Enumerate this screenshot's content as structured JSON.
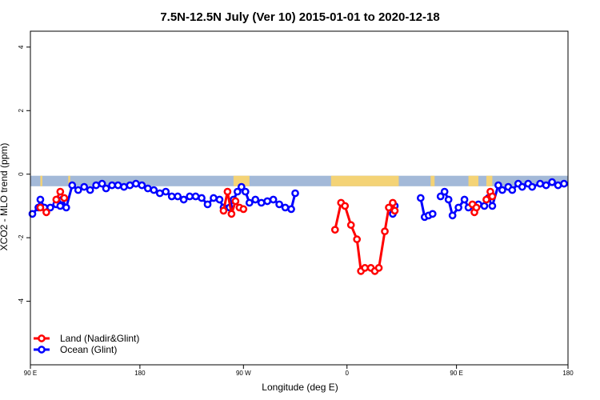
{
  "chart_data": {
    "type": "line",
    "title": "7.5N-12.5N July (Ver 10)   2015-01-01 to 2020-12-18",
    "xlabel": "Longitude (deg E)",
    "ylabel": "XCO2 - MLO trend (ppm)",
    "xlim": [
      -90,
      180
    ],
    "ylim": [
      -6,
      4.5
    ],
    "x_ticks": [
      {
        "value": -90,
        "label": "90 E"
      },
      {
        "value": -35,
        "label": "180"
      },
      {
        "value": 17,
        "label": "90 W"
      },
      {
        "value": 69,
        "label": "0"
      },
      {
        "value": 124,
        "label": "90 E"
      },
      {
        "value": 180,
        "label": "180"
      }
    ],
    "y_ticks": [
      -4,
      -2,
      0,
      2,
      4
    ],
    "legend_position": "bottom-left",
    "colors": {
      "land": "#ff0000",
      "ocean": "#0000ff",
      "land_mask": "#f4d376",
      "ocean_mask": "#a3b9d8"
    },
    "series": [
      {
        "name": "Land (Nadir&Glint)",
        "color": "#ff0000",
        "segments": [
          [
            [
              -85,
              -1.05
            ],
            [
              -82,
              -1.2
            ]
          ],
          [
            [
              -77,
              -0.8
            ],
            [
              -75,
              -0.55
            ],
            [
              -73,
              -0.75
            ]
          ],
          [
            [
              7,
              -1.15
            ],
            [
              9,
              -0.55
            ],
            [
              11,
              -1.25
            ],
            [
              13,
              -0.85
            ],
            [
              15,
              -1.05
            ],
            [
              17,
              -1.1
            ]
          ],
          [
            [
              63,
              -1.75
            ],
            [
              66,
              -0.9
            ],
            [
              68,
              -1.0
            ],
            [
              71,
              -1.6
            ],
            [
              74,
              -2.05
            ],
            [
              76,
              -3.05
            ],
            [
              78,
              -2.95
            ],
            [
              81,
              -2.95
            ],
            [
              83,
              -3.05
            ],
            [
              85,
              -2.95
            ],
            [
              88,
              -1.8
            ],
            [
              90,
              -1.05
            ],
            [
              92,
              -0.9
            ],
            [
              93,
              -1.15
            ]
          ],
          [
            [
              132,
              -0.95
            ],
            [
              133,
              -1.2
            ],
            [
              134,
              -1.05
            ]
          ],
          [
            [
              139,
              -0.8
            ],
            [
              141,
              -0.55
            ],
            [
              142,
              -0.7
            ]
          ]
        ]
      },
      {
        "name": "Ocean (Glint)",
        "color": "#0000ff",
        "segments": [
          [
            [
              -89,
              -1.25
            ],
            [
              -86,
              -1.05
            ],
            [
              -85,
              -0.8
            ],
            [
              -83,
              -1.05
            ],
            [
              -80,
              -1.05
            ],
            [
              -77,
              -0.95
            ],
            [
              -75,
              -1.0
            ],
            [
              -74,
              -0.8
            ],
            [
              -72,
              -1.05
            ],
            [
              -69,
              -0.35
            ],
            [
              -66,
              -0.5
            ],
            [
              -63,
              -0.4
            ],
            [
              -60,
              -0.5
            ],
            [
              -57,
              -0.35
            ],
            [
              -54,
              -0.3
            ],
            [
              -52,
              -0.45
            ],
            [
              -49,
              -0.35
            ],
            [
              -46,
              -0.35
            ],
            [
              -43,
              -0.4
            ],
            [
              -40,
              -0.35
            ],
            [
              -37,
              -0.3
            ],
            [
              -34,
              -0.35
            ],
            [
              -31,
              -0.45
            ],
            [
              -28,
              -0.5
            ],
            [
              -25,
              -0.6
            ],
            [
              -22,
              -0.55
            ],
            [
              -19,
              -0.7
            ],
            [
              -16,
              -0.7
            ],
            [
              -13,
              -0.8
            ],
            [
              -10,
              -0.7
            ],
            [
              -7,
              -0.7
            ],
            [
              -4,
              -0.75
            ],
            [
              -1,
              -0.95
            ],
            [
              2,
              -0.75
            ],
            [
              5,
              -0.8
            ],
            [
              7,
              -1.05
            ],
            [
              10,
              -1.05
            ],
            [
              12,
              -0.8
            ],
            [
              14,
              -0.55
            ],
            [
              16,
              -0.4
            ],
            [
              18,
              -0.55
            ],
            [
              20,
              -0.9
            ],
            [
              23,
              -0.8
            ],
            [
              26,
              -0.9
            ],
            [
              29,
              -0.85
            ],
            [
              32,
              -0.8
            ],
            [
              35,
              -0.95
            ],
            [
              38,
              -1.05
            ],
            [
              41,
              -1.1
            ],
            [
              43,
              -0.6
            ]
          ],
          [
            [
              92,
              -1.25
            ],
            [
              93,
              -1.0
            ]
          ],
          [
            [
              106,
              -0.75
            ],
            [
              108,
              -1.35
            ],
            [
              110,
              -1.3
            ],
            [
              112,
              -1.25
            ]
          ],
          [
            [
              116,
              -0.7
            ],
            [
              118,
              -0.55
            ],
            [
              120,
              -0.8
            ],
            [
              122,
              -1.3
            ],
            [
              125,
              -1.05
            ],
            [
              128,
              -0.8
            ],
            [
              130,
              -1.05
            ],
            [
              133,
              -1.0
            ],
            [
              135,
              -0.95
            ],
            [
              138,
              -1.0
            ],
            [
              140,
              -0.75
            ],
            [
              142,
              -1.0
            ],
            [
              145,
              -0.35
            ],
            [
              147,
              -0.5
            ],
            [
              150,
              -0.4
            ],
            [
              152,
              -0.5
            ],
            [
              155,
              -0.3
            ],
            [
              157,
              -0.4
            ],
            [
              160,
              -0.3
            ],
            [
              162,
              -0.4
            ],
            [
              166,
              -0.3
            ],
            [
              169,
              -0.35
            ],
            [
              172,
              -0.25
            ],
            [
              175,
              -0.35
            ],
            [
              178,
              -0.3
            ]
          ]
        ]
      }
    ]
  }
}
